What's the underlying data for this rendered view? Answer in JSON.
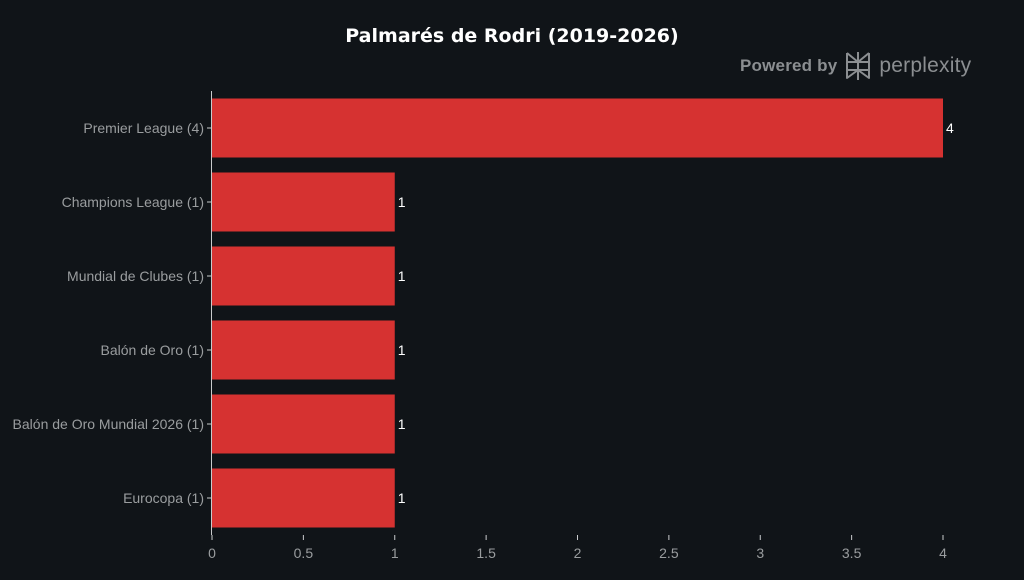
{
  "chart_data": {
    "type": "bar",
    "orientation": "horizontal",
    "title": "Palmarés de Rodri (2019-2026)",
    "xlabel": "",
    "ylabel": "",
    "categories": [
      "Premier League (4)",
      "Champions League (1)",
      "Mundial de Clubes (1)",
      "Balón de Oro (1)",
      "Balón de Oro Mundial 2026 (1)",
      "Eurocopa (1)"
    ],
    "values": [
      4,
      1,
      1,
      1,
      1,
      1
    ],
    "data_labels": [
      "4",
      "1",
      "1",
      "1",
      "1",
      "1"
    ],
    "xticks": [
      0,
      0.5,
      1,
      1.5,
      2,
      2.5,
      3,
      3.5,
      4
    ],
    "xtick_labels": [
      "0",
      "0.5",
      "1",
      "1.5",
      "2",
      "2.5",
      "3",
      "3.5",
      "4"
    ],
    "xlim": [
      0,
      4
    ],
    "grid": false,
    "legend": "none",
    "bar_color": "#d63231",
    "background": "#101418",
    "text_color": "#9a9d9f"
  },
  "watermark": {
    "prefix": "Powered by",
    "brand": "perplexity",
    "logo_icon": "perplexity-logo-icon",
    "color": "#8b8e91"
  }
}
